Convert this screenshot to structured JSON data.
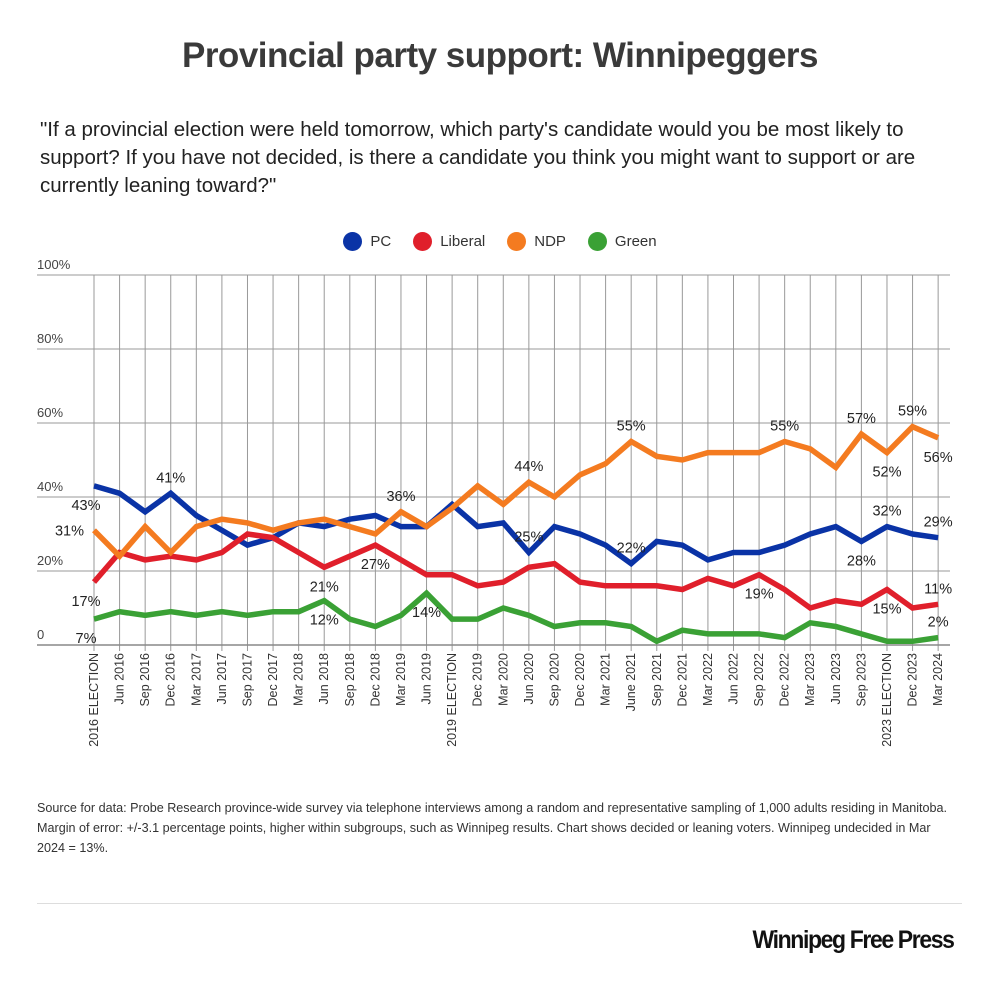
{
  "title": "Provincial party support: Winnipeggers",
  "question": "\"If a provincial election were held tomorrow, which party's candidate would you be most likely to support? If you have not decided, is there a candidate you think you might want to support or are currently leaning toward?\"",
  "source": "Source for data:  Probe Research province-wide survey via telephone interviews among a random and representative sampling of 1,000 adults residing in Manitoba. Margin of error: +/-3.1 percentage points, higher within subgroups, such as Winnipeg results. Chart shows decided or leaning voters. Winnipeg undecided in Mar 2024 = 13%.",
  "logo": "Winnipeg Free Press",
  "chart_data": {
    "type": "line",
    "title": "Provincial party support: Winnipeggers",
    "xlabel": "",
    "ylabel": "",
    "ylim": [
      0,
      100
    ],
    "yticks": [
      0,
      20,
      40,
      60,
      80,
      100
    ],
    "ytick_labels": [
      "0",
      "20%",
      "40%",
      "60%",
      "80%",
      "100%"
    ],
    "grid": true,
    "legend_position": "top-center",
    "categories": [
      "2016 ELECTION",
      "Jun 2016",
      "Sep 2016",
      "Dec 2016",
      "Mar 2017",
      "Jun 2017",
      "Sep 2017",
      "Dec 2017",
      "Mar 2018",
      "Jun 2018",
      "Sep 2018",
      "Dec 2018",
      "Mar 2019",
      "Jun 2019",
      "2019 ELECTION",
      "Dec 2019",
      "Mar 2020",
      "Jun 2020",
      "Sep 2020",
      "Dec 2020",
      "Mar 2021",
      "June 2021",
      "Sep 2021",
      "Dec 2021",
      "Mar 2022",
      "Jun 2022",
      "Sep 2022",
      "Dec 2022",
      "Mar 2023",
      "Jun 2023",
      "Sep 2023",
      "2023 ELECTION",
      "Dec 2023",
      "Mar 2024"
    ],
    "series": [
      {
        "name": "PC",
        "color": "#0a33a6",
        "values": [
          43,
          41,
          36,
          41,
          35,
          31,
          27,
          29,
          33,
          32,
          34,
          35,
          32,
          32,
          38,
          32,
          33,
          25,
          32,
          30,
          27,
          22,
          28,
          27,
          23,
          25,
          25,
          27,
          30,
          32,
          28,
          32,
          30,
          29
        ]
      },
      {
        "name": "Liberal",
        "color": "#e01f2b",
        "values": [
          17,
          25,
          23,
          24,
          23,
          25,
          30,
          29,
          25,
          21,
          24,
          27,
          23,
          19,
          19,
          16,
          17,
          21,
          22,
          17,
          16,
          16,
          16,
          15,
          18,
          16,
          19,
          15,
          10,
          12,
          11,
          15,
          10,
          11
        ]
      },
      {
        "name": "NDP",
        "color": "#f47b20",
        "values": [
          31,
          24,
          32,
          25,
          32,
          34,
          33,
          31,
          33,
          34,
          32,
          30,
          36,
          32,
          37,
          43,
          38,
          44,
          40,
          46,
          49,
          55,
          51,
          50,
          52,
          52,
          52,
          55,
          53,
          48,
          57,
          52,
          59,
          56
        ]
      },
      {
        "name": "Green",
        "color": "#3aa135",
        "values": [
          7,
          9,
          8,
          9,
          8,
          9,
          8,
          9,
          9,
          12,
          7,
          5,
          8,
          14,
          7,
          7,
          10,
          8,
          5,
          6,
          6,
          5,
          1,
          4,
          3,
          3,
          3,
          2,
          6,
          5,
          3,
          1,
          1,
          2
        ]
      }
    ],
    "data_labels": [
      {
        "series": "PC",
        "index": 0,
        "text": "43%",
        "placement": "below"
      },
      {
        "series": "PC",
        "index": 3,
        "text": "41%",
        "placement": "above"
      },
      {
        "series": "PC",
        "index": 17,
        "text": "25%",
        "placement": "above"
      },
      {
        "series": "PC",
        "index": 21,
        "text": "22%",
        "placement": "above"
      },
      {
        "series": "PC",
        "index": 30,
        "text": "28%",
        "placement": "below"
      },
      {
        "series": "PC",
        "index": 31,
        "text": "32%",
        "placement": "above"
      },
      {
        "series": "PC",
        "index": 33,
        "text": "29%",
        "placement": "above"
      },
      {
        "series": "NDP",
        "index": 0,
        "text": "31%",
        "placement": "left"
      },
      {
        "series": "NDP",
        "index": 12,
        "text": "36%",
        "placement": "above"
      },
      {
        "series": "NDP",
        "index": 17,
        "text": "44%",
        "placement": "above"
      },
      {
        "series": "NDP",
        "index": 21,
        "text": "55%",
        "placement": "above"
      },
      {
        "series": "NDP",
        "index": 27,
        "text": "55%",
        "placement": "above"
      },
      {
        "series": "NDP",
        "index": 30,
        "text": "57%",
        "placement": "above"
      },
      {
        "series": "NDP",
        "index": 31,
        "text": "52%",
        "placement": "below"
      },
      {
        "series": "NDP",
        "index": 32,
        "text": "59%",
        "placement": "above"
      },
      {
        "series": "NDP",
        "index": 33,
        "text": "56%",
        "placement": "below"
      },
      {
        "series": "Liberal",
        "index": 0,
        "text": "17%",
        "placement": "below"
      },
      {
        "series": "Liberal",
        "index": 9,
        "text": "21%",
        "placement": "below"
      },
      {
        "series": "Liberal",
        "index": 11,
        "text": "27%",
        "placement": "below"
      },
      {
        "series": "Liberal",
        "index": 26,
        "text": "19%",
        "placement": "below"
      },
      {
        "series": "Liberal",
        "index": 31,
        "text": "15%",
        "placement": "below"
      },
      {
        "series": "Liberal",
        "index": 33,
        "text": "11%",
        "placement": "above"
      },
      {
        "series": "Green",
        "index": 0,
        "text": "7%",
        "placement": "below"
      },
      {
        "series": "Green",
        "index": 9,
        "text": "12%",
        "placement": "below"
      },
      {
        "series": "Green",
        "index": 13,
        "text": "14%",
        "placement": "below"
      },
      {
        "series": "Green",
        "index": 33,
        "text": "2%",
        "placement": "above"
      }
    ]
  }
}
